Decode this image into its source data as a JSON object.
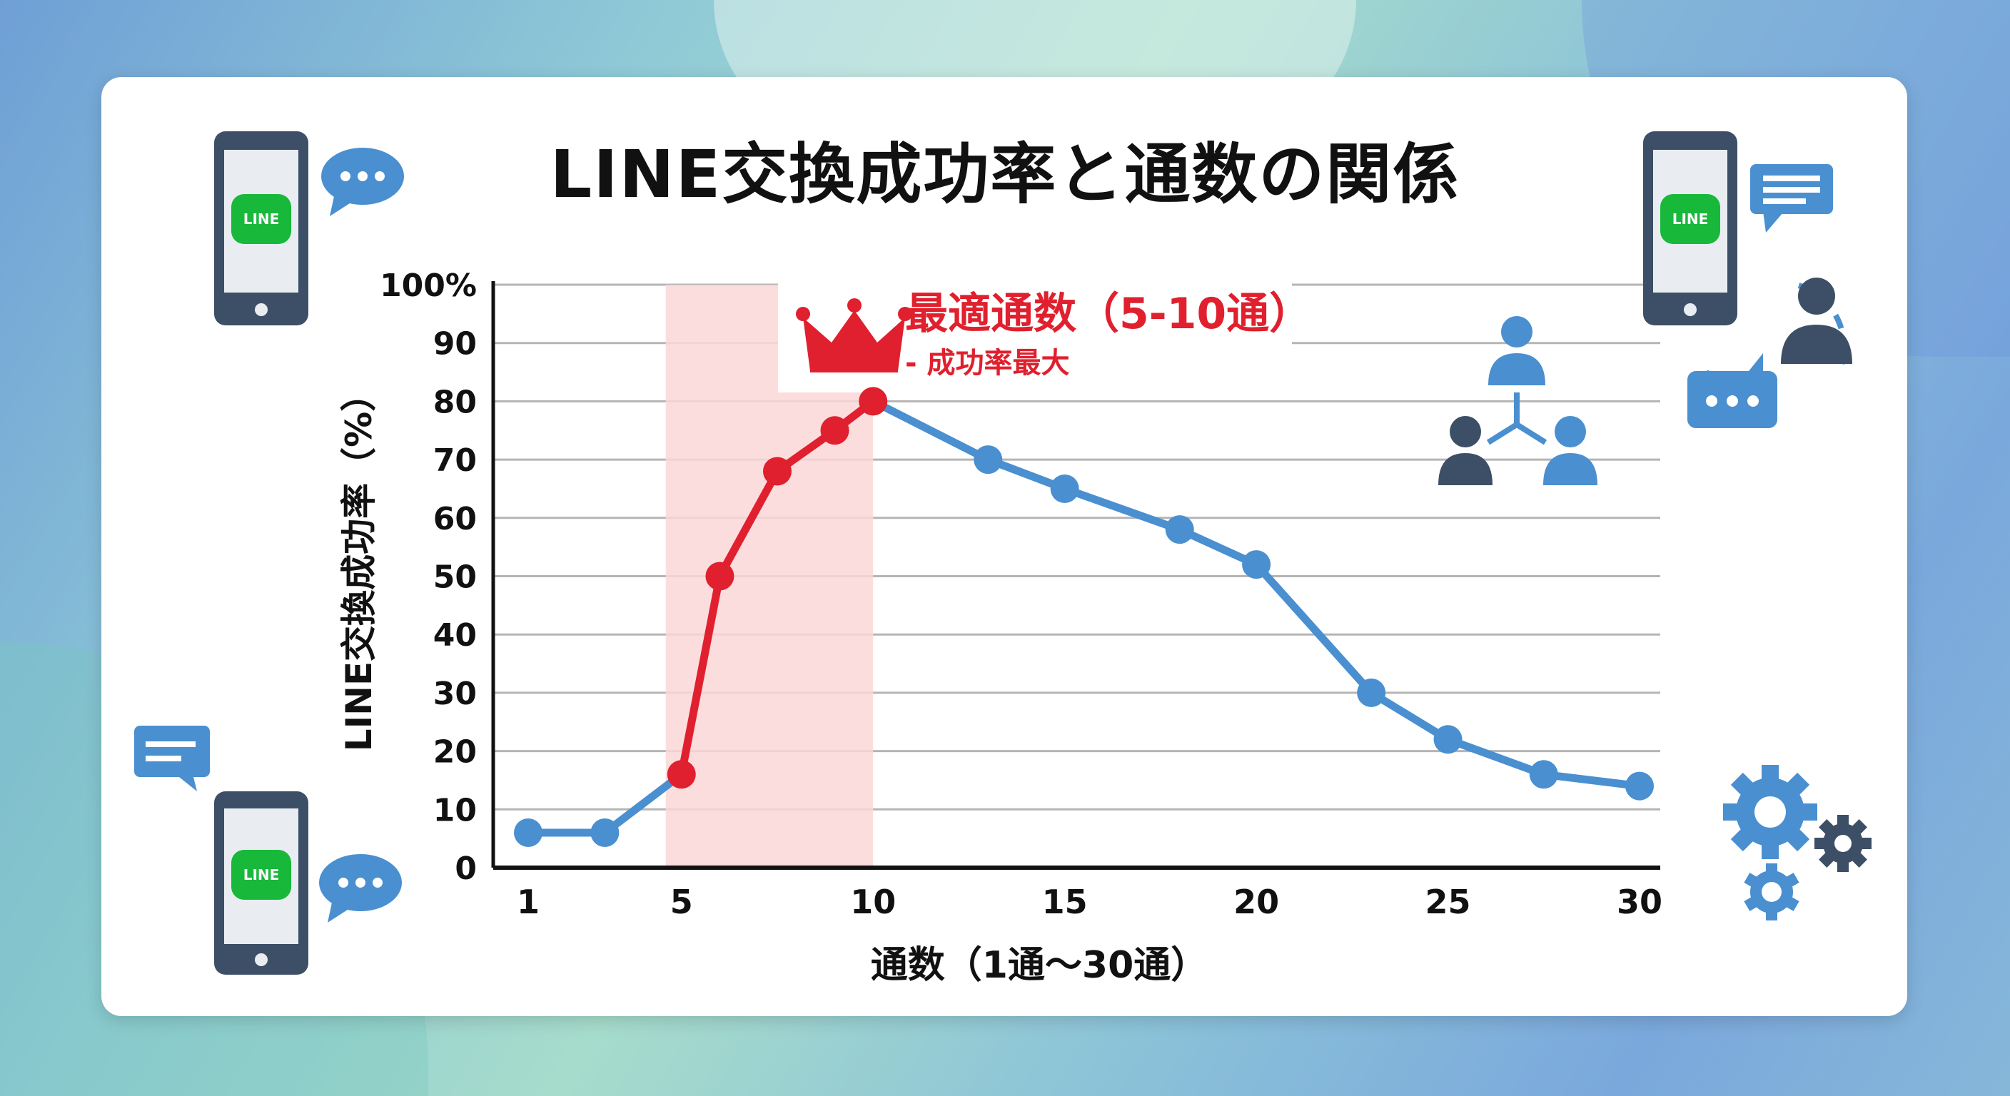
{
  "chart_data": {
    "type": "line",
    "title": "LINE交換成功率と通数の関係",
    "xlabel": "通数（1通〜30通）",
    "ylabel": "LINE交換成功率（%）",
    "xlim": [
      1,
      30
    ],
    "ylim": [
      0,
      100
    ],
    "xticks": [
      "1",
      "5",
      "10",
      "15",
      "20",
      "25",
      "30"
    ],
    "yticks": [
      "0",
      "10",
      "20",
      "30",
      "40",
      "50",
      "60",
      "70",
      "80",
      "90",
      "100%"
    ],
    "grid": true,
    "x": [
      1,
      3,
      5,
      6,
      7.5,
      9,
      10,
      13,
      15,
      18,
      20,
      23,
      25,
      27.5,
      30
    ],
    "y": [
      6,
      6,
      16,
      50,
      68,
      75,
      80,
      70,
      65,
      58,
      52,
      30,
      22,
      16,
      14
    ],
    "highlight": {
      "range": [
        5,
        10
      ],
      "label": "最適通数（5-10通）",
      "sublabel": "- 成功率最大",
      "color": "#e0202e",
      "band_color": "#fbd7d7"
    },
    "line_color": "#4a8fd0"
  },
  "icons": [
    "smartphone-line-icon",
    "speech-bubble-dots-icon",
    "speech-bubble-lines-icon",
    "people-network-icon",
    "gear-icon",
    "crown-icon"
  ],
  "line_logo": "LINE"
}
